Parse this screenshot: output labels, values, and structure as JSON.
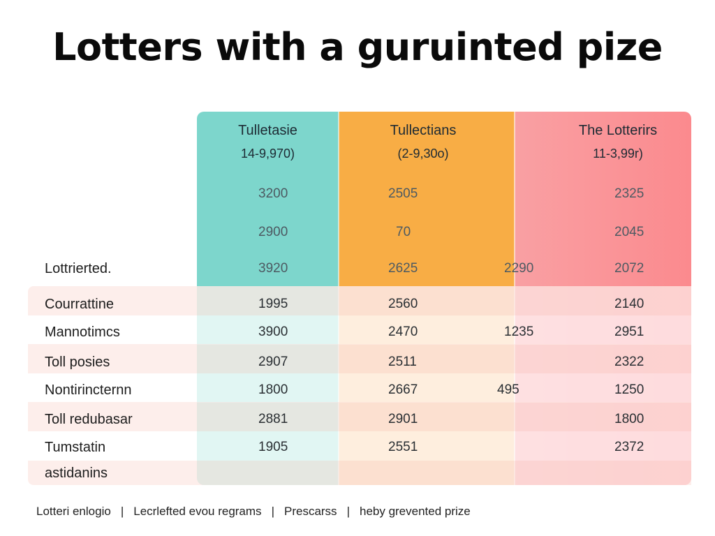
{
  "title": "Lotters with a guruinted pize",
  "chart_data": {
    "type": "table",
    "title": "Lotters with a guruinted pize",
    "columns": [
      {
        "name": "Tulletasie",
        "range": "14-9,970)",
        "color": "#7dd6cc"
      },
      {
        "name": "Tullectians",
        "range": "(2-9,30o)",
        "color": "#f8ad45"
      },
      {
        "name": "The Lotterirs",
        "range": "11-3,99r)",
        "color": "#fb8a8e"
      }
    ],
    "header_values": [
      {
        "label": "",
        "values": [
          "3200",
          "2505",
          "2325"
        ],
        "extra": ""
      },
      {
        "label": "",
        "values": [
          "2900",
          "70",
          "2045"
        ],
        "extra": ""
      },
      {
        "label": "Lottrierted.",
        "values": [
          "3920",
          "2625",
          "2072"
        ],
        "extra": "2290"
      }
    ],
    "rows": [
      {
        "label": "Courrattine",
        "values": [
          "1995",
          "2560",
          "2140"
        ],
        "extra": ""
      },
      {
        "label": "Mannotimcs",
        "values": [
          "3900",
          "2470",
          "2951"
        ],
        "extra": "1235"
      },
      {
        "label": "Toll posies",
        "values": [
          "2907",
          "2511",
          "2322"
        ],
        "extra": ""
      },
      {
        "label": "Nontirincternn",
        "values": [
          "1800",
          "2667",
          "1250"
        ],
        "extra": "495"
      },
      {
        "label": "Toll redubasar",
        "values": [
          "2881",
          "2901",
          "1800"
        ],
        "extra": ""
      },
      {
        "label": "Tumstatin",
        "values": [
          "1905",
          "2551",
          "2372"
        ],
        "extra": ""
      },
      {
        "label": "astidanins",
        "values": [
          "",
          "",
          ""
        ],
        "extra": ""
      }
    ]
  },
  "footer": {
    "items": [
      "Lotteri enlogio",
      "Lecrlefted evou regrams",
      "Prescarss",
      "heby grevented prize"
    ],
    "separator": "|"
  }
}
